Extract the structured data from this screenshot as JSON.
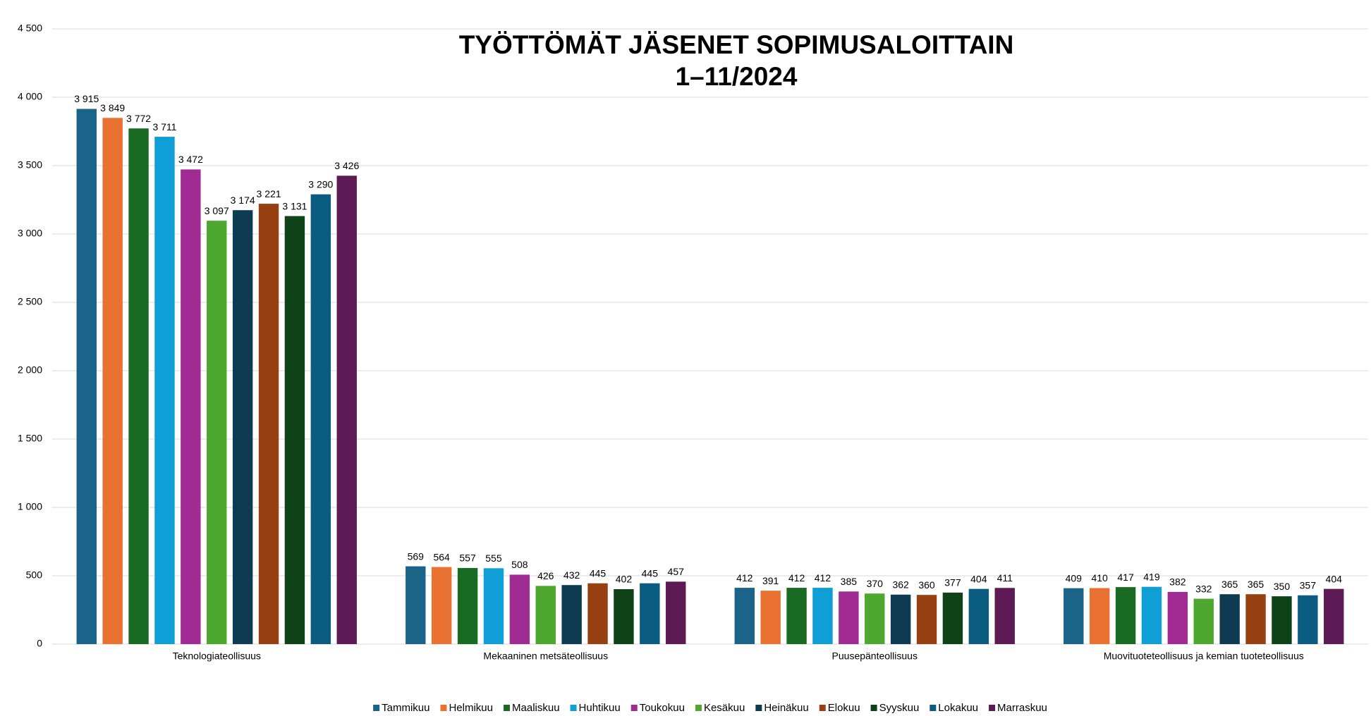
{
  "chart_data": {
    "type": "bar",
    "title": [
      "TYÖTTÖMÄT JÄSENET SOPIMUSALOITTAIN",
      "1–11/2024"
    ],
    "categories": [
      "Teknologiateollisuus",
      "Mekaaninen metsäteollisuus",
      "Puusepänteollisuus",
      "Muovituoteteollisuus ja kemian tuoteteollisuus"
    ],
    "series": [
      {
        "name": "Tammikuu",
        "color": "#1a6489",
        "values": [
          3915,
          569,
          412,
          409
        ],
        "value_labels": [
          "3 915",
          "569",
          "412",
          "409"
        ]
      },
      {
        "name": "Helmikuu",
        "color": "#e97132",
        "values": [
          3849,
          564,
          391,
          410
        ],
        "value_labels": [
          "3 849",
          "564",
          "391",
          "410"
        ]
      },
      {
        "name": "Maaliskuu",
        "color": "#196b24",
        "values": [
          3772,
          557,
          412,
          417
        ],
        "value_labels": [
          "3 772",
          "557",
          "412",
          "417"
        ]
      },
      {
        "name": "Huhtikuu",
        "color": "#0f9ed5",
        "values": [
          3711,
          555,
          412,
          419
        ],
        "value_labels": [
          "3 711",
          "555",
          "412",
          "419"
        ]
      },
      {
        "name": "Toukokuu",
        "color": "#a02b93",
        "values": [
          3472,
          508,
          385,
          382
        ],
        "value_labels": [
          "3 472",
          "508",
          "385",
          "382"
        ]
      },
      {
        "name": "Kesäkuu",
        "color": "#4ea72e",
        "values": [
          3097,
          426,
          370,
          332
        ],
        "value_labels": [
          "3 097",
          "426",
          "370",
          "332"
        ]
      },
      {
        "name": "Heinäkuu",
        "color": "#0e3a52",
        "values": [
          3174,
          432,
          362,
          365
        ],
        "value_labels": [
          "3 174",
          "432",
          "362",
          "365"
        ]
      },
      {
        "name": "Elokuu",
        "color": "#974112",
        "values": [
          3221,
          445,
          360,
          365
        ],
        "value_labels": [
          "3 221",
          "445",
          "360",
          "365"
        ]
      },
      {
        "name": "Syyskuu",
        "color": "#0f4217",
        "values": [
          3131,
          402,
          377,
          350
        ],
        "value_labels": [
          "3 131",
          "402",
          "377",
          "350"
        ]
      },
      {
        "name": "Lokakuu",
        "color": "#0a5c80",
        "values": [
          3290,
          445,
          404,
          357
        ],
        "value_labels": [
          "3 290",
          "445",
          "404",
          "357"
        ]
      },
      {
        "name": "Marraskuu",
        "color": "#5e1a55",
        "values": [
          3426,
          457,
          411,
          404
        ],
        "value_labels": [
          "3 426",
          "457",
          "411",
          "404"
        ]
      }
    ],
    "ylim": [
      0,
      4500
    ],
    "yticks": [
      0,
      500,
      {
        "value": 1000,
        "label": "1 000"
      },
      {
        "value": 1500,
        "label": "1 500"
      },
      {
        "value": 2000,
        "label": "2 000"
      },
      {
        "value": 2500,
        "label": "2 500"
      },
      {
        "value": 3000,
        "label": "3 000"
      },
      {
        "value": 3500,
        "label": "3 500"
      },
      {
        "value": 4000,
        "label": "4 000"
      },
      {
        "value": 4500,
        "label": "4 500"
      }
    ],
    "grid": true,
    "legend": "bottom"
  }
}
